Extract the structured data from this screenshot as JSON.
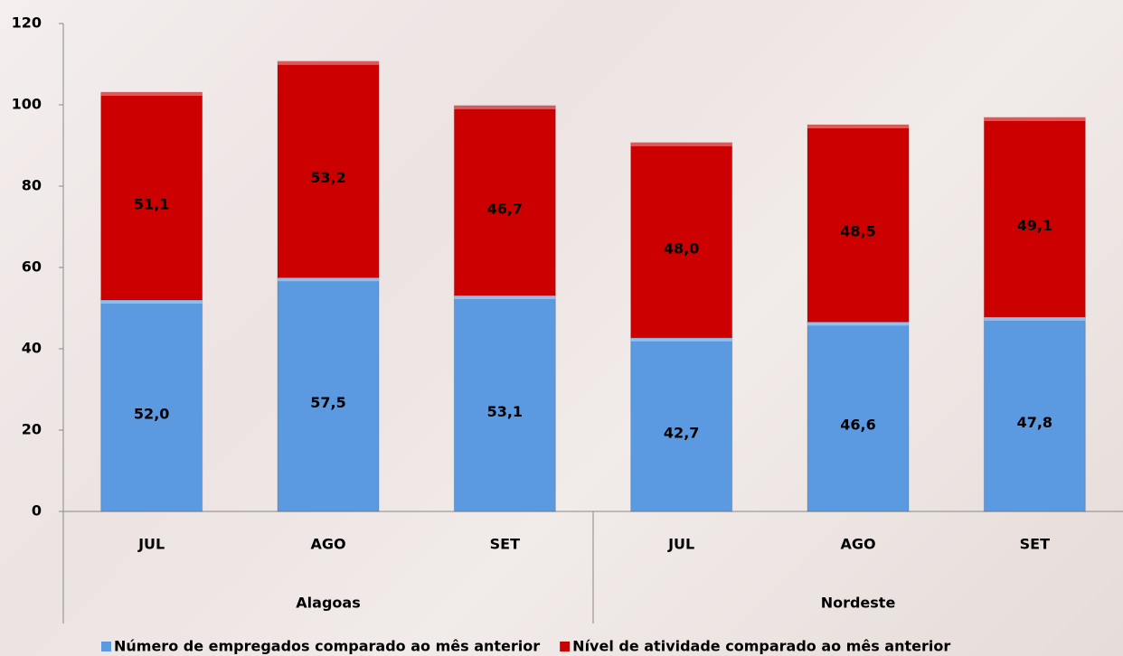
{
  "chart_data": {
    "type": "stacked-bar",
    "groups": [
      {
        "name": "Alagoas",
        "categories": [
          "JUL",
          "AGO",
          "SET"
        ]
      },
      {
        "name": "Nordeste",
        "categories": [
          "JUL",
          "AGO",
          "SET"
        ]
      }
    ],
    "series": [
      {
        "name": "Número de empregados comparado ao mês anterior",
        "color": "#5b9ae0",
        "values": [
          52.0,
          57.5,
          53.1,
          42.7,
          46.6,
          47.8
        ],
        "value_labels": [
          "52,0",
          "57,5",
          "53,1",
          "42,7",
          "46,6",
          "47,8"
        ]
      },
      {
        "name": "Nível de atividade comparado ao mês anterior",
        "color": "#cc0000",
        "values": [
          51.1,
          53.2,
          46.7,
          48.0,
          48.5,
          49.1
        ],
        "value_labels": [
          "51,1",
          "53,2",
          "46,7",
          "48,0",
          "48,5",
          "49,1"
        ]
      }
    ],
    "ylim": [
      0,
      120
    ],
    "yticks": [
      0,
      20,
      40,
      60,
      80,
      100,
      120
    ]
  }
}
